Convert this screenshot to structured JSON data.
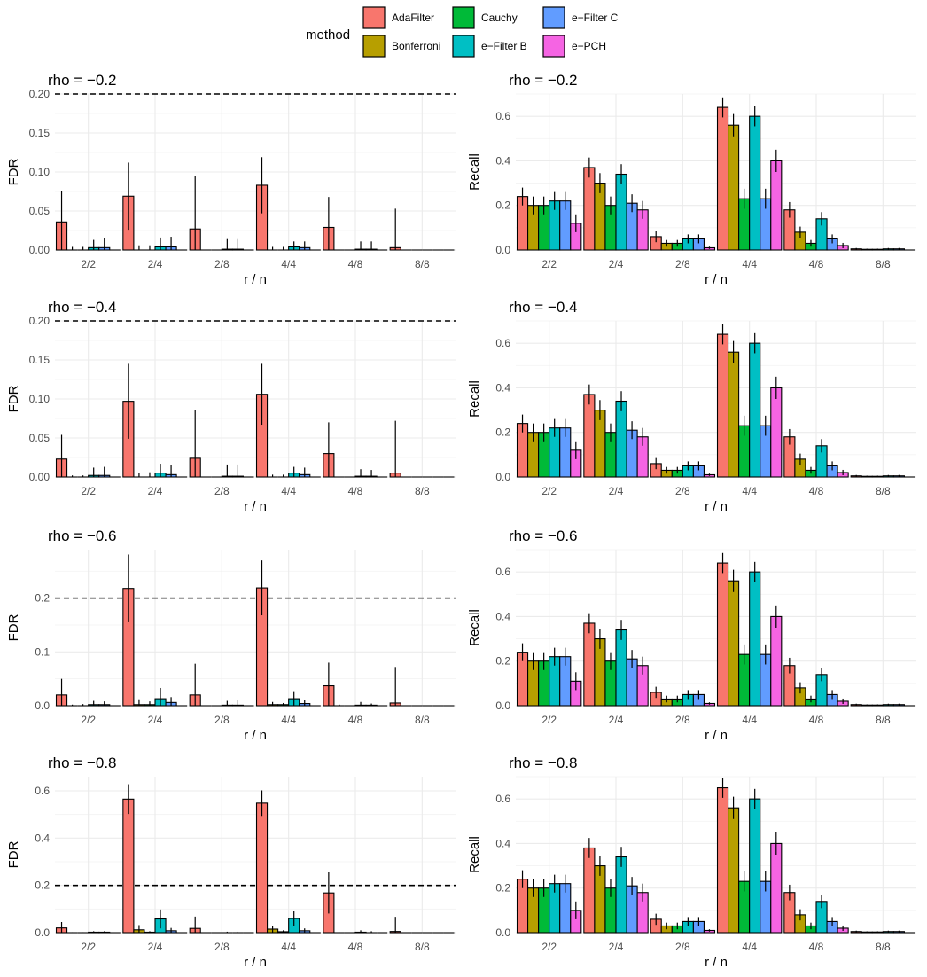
{
  "legend": {
    "title": "method",
    "items": [
      {
        "name": "AdaFilter",
        "color": "#F8766D"
      },
      {
        "name": "Bonferroni",
        "color": "#B79F00"
      },
      {
        "name": "Cauchy",
        "color": "#00BA38"
      },
      {
        "name": "e−Filter B",
        "color": "#00BFC4"
      },
      {
        "name": "e−Filter C",
        "color": "#619CFF"
      },
      {
        "name": "e−PCH",
        "color": "#F564E3"
      }
    ]
  },
  "chart_data": [
    {
      "type": "bar",
      "title": "rho = −0.2",
      "xlabel": "r / n",
      "ylabel": "FDR",
      "categories": [
        "2/2",
        "2/4",
        "2/8",
        "4/4",
        "4/8",
        "8/8"
      ],
      "ylim": [
        0,
        0.2
      ],
      "yticks": [
        "0.00",
        "0.05",
        "0.10",
        "0.15",
        "0.20"
      ],
      "reference_line": 0.2,
      "series": [
        {
          "name": "AdaFilter",
          "values": [
            0.036,
            0.069,
            0.027,
            0.083,
            0.029,
            0.003
          ],
          "err": [
            0.04,
            0.043,
            0.068,
            0.036,
            0.039,
            0.05
          ]
        },
        {
          "name": "Bonferroni",
          "values": [
            0,
            0,
            0,
            0,
            0,
            0
          ],
          "err": [
            0.004,
            0.006,
            0,
            0.004,
            0,
            0
          ]
        },
        {
          "name": "Cauchy",
          "values": [
            0,
            0,
            0,
            0,
            0,
            0
          ],
          "err": [
            0.004,
            0.006,
            0,
            0.004,
            0,
            0
          ]
        },
        {
          "name": "e−Filter B",
          "values": [
            0.003,
            0.004,
            0.001,
            0.004,
            0.001,
            0
          ],
          "err": [
            0.01,
            0.012,
            0.013,
            0.007,
            0.01,
            0
          ]
        },
        {
          "name": "e−Filter C",
          "values": [
            0.003,
            0.004,
            0.001,
            0.003,
            0.001,
            0
          ],
          "err": [
            0.012,
            0.013,
            0.013,
            0.008,
            0.01,
            0
          ]
        },
        {
          "name": "e−PCH",
          "values": [
            0,
            0,
            0,
            0,
            0,
            0
          ],
          "err": [
            0,
            0,
            0,
            0,
            0,
            0
          ]
        }
      ]
    },
    {
      "type": "bar",
      "title": "rho = −0.2",
      "xlabel": "r / n",
      "ylabel": "Recall",
      "categories": [
        "2/2",
        "2/4",
        "2/8",
        "4/4",
        "4/8",
        "8/8"
      ],
      "ylim": [
        0,
        0.7
      ],
      "yticks": [
        "0.0",
        "0.2",
        "0.4",
        "0.6"
      ],
      "series": [
        {
          "name": "AdaFilter",
          "values": [
            0.24,
            0.37,
            0.06,
            0.64,
            0.18,
            0.005
          ],
          "err": [
            0.04,
            0.045,
            0.025,
            0.045,
            0.035,
            0.004
          ]
        },
        {
          "name": "Bonferroni",
          "values": [
            0.2,
            0.3,
            0.03,
            0.56,
            0.08,
            0.003
          ],
          "err": [
            0.04,
            0.045,
            0.015,
            0.05,
            0.025,
            0.003
          ]
        },
        {
          "name": "Cauchy",
          "values": [
            0.2,
            0.2,
            0.03,
            0.23,
            0.03,
            0.003
          ],
          "err": [
            0.04,
            0.04,
            0.015,
            0.045,
            0.015,
            0.003
          ]
        },
        {
          "name": "e−Filter B",
          "values": [
            0.22,
            0.34,
            0.05,
            0.6,
            0.14,
            0.005
          ],
          "err": [
            0.04,
            0.045,
            0.02,
            0.045,
            0.03,
            0.004
          ]
        },
        {
          "name": "e−Filter C",
          "values": [
            0.22,
            0.21,
            0.05,
            0.23,
            0.05,
            0.005
          ],
          "err": [
            0.04,
            0.04,
            0.02,
            0.045,
            0.02,
            0.004
          ]
        },
        {
          "name": "e−PCH",
          "values": [
            0.12,
            0.18,
            0.01,
            0.4,
            0.02,
            0.001
          ],
          "err": [
            0.04,
            0.04,
            0.005,
            0.05,
            0.012,
            0.001
          ]
        }
      ]
    },
    {
      "type": "bar",
      "title": "rho = −0.4",
      "xlabel": "r / n",
      "ylabel": "FDR",
      "categories": [
        "2/2",
        "2/4",
        "2/8",
        "4/4",
        "4/8",
        "8/8"
      ],
      "ylim": [
        0,
        0.2
      ],
      "yticks": [
        "0.00",
        "0.05",
        "0.10",
        "0.15",
        "0.20"
      ],
      "reference_line": 0.2,
      "series": [
        {
          "name": "AdaFilter",
          "values": [
            0.023,
            0.097,
            0.024,
            0.106,
            0.03,
            0.005
          ],
          "err": [
            0.031,
            0.048,
            0.062,
            0.039,
            0.04,
            0.067
          ]
        },
        {
          "name": "Bonferroni",
          "values": [
            0,
            0,
            0,
            0,
            0,
            0
          ],
          "err": [
            0.002,
            0.005,
            0,
            0.003,
            0,
            0
          ]
        },
        {
          "name": "Cauchy",
          "values": [
            0,
            0,
            0,
            0,
            0,
            0
          ],
          "err": [
            0.002,
            0.006,
            0,
            0.003,
            0,
            0
          ]
        },
        {
          "name": "e−Filter B",
          "values": [
            0.002,
            0.005,
            0.001,
            0.005,
            0.001,
            0
          ],
          "err": [
            0.01,
            0.012,
            0.015,
            0.008,
            0.009,
            0
          ]
        },
        {
          "name": "e−Filter C",
          "values": [
            0.002,
            0.003,
            0.001,
            0.003,
            0.001,
            0
          ],
          "err": [
            0.011,
            0.012,
            0.015,
            0.009,
            0.008,
            0
          ]
        },
        {
          "name": "e−PCH",
          "values": [
            0,
            0,
            0,
            0,
            0,
            0
          ],
          "err": [
            0,
            0,
            0,
            0,
            0,
            0
          ]
        }
      ]
    },
    {
      "type": "bar",
      "title": "rho = −0.4",
      "xlabel": "r / n",
      "ylabel": "Recall",
      "categories": [
        "2/2",
        "2/4",
        "2/8",
        "4/4",
        "4/8",
        "8/8"
      ],
      "ylim": [
        0,
        0.7
      ],
      "yticks": [
        "0.0",
        "0.2",
        "0.4",
        "0.6"
      ],
      "series": [
        {
          "name": "AdaFilter",
          "values": [
            0.24,
            0.37,
            0.06,
            0.64,
            0.18,
            0.005
          ],
          "err": [
            0.04,
            0.045,
            0.025,
            0.045,
            0.035,
            0.004
          ]
        },
        {
          "name": "Bonferroni",
          "values": [
            0.2,
            0.3,
            0.03,
            0.56,
            0.08,
            0.003
          ],
          "err": [
            0.04,
            0.045,
            0.015,
            0.05,
            0.025,
            0.003
          ]
        },
        {
          "name": "Cauchy",
          "values": [
            0.2,
            0.2,
            0.03,
            0.23,
            0.03,
            0.003
          ],
          "err": [
            0.04,
            0.04,
            0.015,
            0.045,
            0.015,
            0.003
          ]
        },
        {
          "name": "e−Filter B",
          "values": [
            0.22,
            0.34,
            0.05,
            0.6,
            0.14,
            0.005
          ],
          "err": [
            0.04,
            0.045,
            0.02,
            0.045,
            0.03,
            0.004
          ]
        },
        {
          "name": "e−Filter C",
          "values": [
            0.22,
            0.21,
            0.05,
            0.23,
            0.05,
            0.005
          ],
          "err": [
            0.04,
            0.04,
            0.02,
            0.045,
            0.02,
            0.004
          ]
        },
        {
          "name": "e−PCH",
          "values": [
            0.12,
            0.18,
            0.01,
            0.4,
            0.02,
            0.001
          ],
          "err": [
            0.04,
            0.04,
            0.005,
            0.05,
            0.012,
            0.001
          ]
        }
      ]
    },
    {
      "type": "bar",
      "title": "rho = −0.6",
      "xlabel": "r / n",
      "ylabel": "FDR",
      "categories": [
        "2/2",
        "2/4",
        "2/8",
        "4/4",
        "4/8",
        "8/8"
      ],
      "ylim": [
        0,
        0.29
      ],
      "yticks": [
        "0.0",
        "0.1",
        "0.2"
      ],
      "reference_line": 0.2,
      "series": [
        {
          "name": "AdaFilter",
          "values": [
            0.02,
            0.218,
            0.02,
            0.219,
            0.037,
            0.005
          ],
          "err": [
            0.03,
            0.063,
            0.058,
            0.051,
            0.043,
            0.067
          ]
        },
        {
          "name": "Bonferroni",
          "values": [
            0,
            0.002,
            0,
            0.002,
            0,
            0
          ],
          "err": [
            0.002,
            0.01,
            0,
            0.005,
            0.002,
            0
          ]
        },
        {
          "name": "Cauchy",
          "values": [
            0,
            0.002,
            0,
            0.002,
            0,
            0
          ],
          "err": [
            0.003,
            0.006,
            0,
            0.003,
            0,
            0
          ]
        },
        {
          "name": "e−Filter B",
          "values": [
            0.002,
            0.013,
            0.001,
            0.013,
            0.001,
            0
          ],
          "err": [
            0.007,
            0.02,
            0.008,
            0.014,
            0.006,
            0
          ]
        },
        {
          "name": "e−Filter C",
          "values": [
            0.002,
            0.006,
            0.001,
            0.004,
            0.001,
            0
          ],
          "err": [
            0.006,
            0.01,
            0.01,
            0.006,
            0.003,
            0
          ]
        },
        {
          "name": "e−PCH",
          "values": [
            0,
            0,
            0,
            0,
            0,
            0
          ],
          "err": [
            0,
            0,
            0,
            0,
            0,
            0
          ]
        }
      ]
    },
    {
      "type": "bar",
      "title": "rho = −0.6",
      "xlabel": "r / n",
      "ylabel": "Recall",
      "categories": [
        "2/2",
        "2/4",
        "2/8",
        "4/4",
        "4/8",
        "8/8"
      ],
      "ylim": [
        0,
        0.7
      ],
      "yticks": [
        "0.0",
        "0.2",
        "0.4",
        "0.6"
      ],
      "series": [
        {
          "name": "AdaFilter",
          "values": [
            0.24,
            0.37,
            0.06,
            0.64,
            0.18,
            0.005
          ],
          "err": [
            0.04,
            0.045,
            0.025,
            0.045,
            0.035,
            0.004
          ]
        },
        {
          "name": "Bonferroni",
          "values": [
            0.2,
            0.3,
            0.03,
            0.56,
            0.08,
            0.003
          ],
          "err": [
            0.04,
            0.045,
            0.015,
            0.05,
            0.025,
            0.003
          ]
        },
        {
          "name": "Cauchy",
          "values": [
            0.2,
            0.2,
            0.03,
            0.23,
            0.03,
            0.003
          ],
          "err": [
            0.04,
            0.04,
            0.015,
            0.045,
            0.015,
            0.003
          ]
        },
        {
          "name": "e−Filter B",
          "values": [
            0.22,
            0.34,
            0.05,
            0.6,
            0.14,
            0.005
          ],
          "err": [
            0.04,
            0.045,
            0.02,
            0.045,
            0.03,
            0.004
          ]
        },
        {
          "name": "e−Filter C",
          "values": [
            0.22,
            0.21,
            0.05,
            0.23,
            0.05,
            0.005
          ],
          "err": [
            0.04,
            0.04,
            0.02,
            0.045,
            0.02,
            0.004
          ]
        },
        {
          "name": "e−PCH",
          "values": [
            0.11,
            0.18,
            0.01,
            0.4,
            0.02,
            0.001
          ],
          "err": [
            0.04,
            0.04,
            0.005,
            0.05,
            0.012,
            0.001
          ]
        }
      ]
    },
    {
      "type": "bar",
      "title": "rho = −0.8",
      "xlabel": "r / n",
      "ylabel": "FDR",
      "categories": [
        "2/2",
        "2/4",
        "2/8",
        "4/4",
        "4/8",
        "8/8"
      ],
      "ylim": [
        0,
        0.66
      ],
      "yticks": [
        "0.0",
        "0.2",
        "0.4",
        "0.6"
      ],
      "reference_line": 0.2,
      "series": [
        {
          "name": "AdaFilter",
          "values": [
            0.02,
            0.565,
            0.018,
            0.548,
            0.168,
            0.005
          ],
          "err": [
            0.025,
            0.063,
            0.05,
            0.054,
            0.087,
            0.062
          ]
        },
        {
          "name": "Bonferroni",
          "values": [
            0,
            0.012,
            0,
            0.015,
            0,
            0
          ],
          "err": [
            0.002,
            0.02,
            0,
            0.015,
            0.002,
            0
          ]
        },
        {
          "name": "Cauchy",
          "values": [
            0,
            0.002,
            0,
            0.004,
            0,
            0
          ],
          "err": [
            0.002,
            0.004,
            0,
            0.006,
            0,
            0
          ]
        },
        {
          "name": "e−Filter B",
          "values": [
            0.002,
            0.058,
            0.001,
            0.06,
            0.002,
            0
          ],
          "err": [
            0.004,
            0.04,
            0.003,
            0.033,
            0.008,
            0
          ]
        },
        {
          "name": "e−Filter C",
          "values": [
            0.002,
            0.008,
            0.001,
            0.008,
            0.001,
            0
          ],
          "err": [
            0.004,
            0.012,
            0.003,
            0.01,
            0.005,
            0
          ]
        },
        {
          "name": "e−PCH",
          "values": [
            0,
            0,
            0,
            0,
            0,
            0
          ],
          "err": [
            0,
            0,
            0,
            0,
            0,
            0
          ]
        }
      ]
    },
    {
      "type": "bar",
      "title": "rho = −0.8",
      "xlabel": "r / n",
      "ylabel": "Recall",
      "categories": [
        "2/2",
        "2/4",
        "2/8",
        "4/4",
        "4/8",
        "8/8"
      ],
      "ylim": [
        0,
        0.7
      ],
      "yticks": [
        "0.0",
        "0.2",
        "0.4",
        "0.6"
      ],
      "series": [
        {
          "name": "AdaFilter",
          "values": [
            0.24,
            0.38,
            0.06,
            0.65,
            0.18,
            0.005
          ],
          "err": [
            0.04,
            0.045,
            0.025,
            0.045,
            0.035,
            0.004
          ]
        },
        {
          "name": "Bonferroni",
          "values": [
            0.2,
            0.3,
            0.03,
            0.56,
            0.08,
            0.003
          ],
          "err": [
            0.04,
            0.045,
            0.015,
            0.05,
            0.025,
            0.003
          ]
        },
        {
          "name": "Cauchy",
          "values": [
            0.2,
            0.2,
            0.03,
            0.23,
            0.03,
            0.003
          ],
          "err": [
            0.04,
            0.04,
            0.015,
            0.045,
            0.015,
            0.003
          ]
        },
        {
          "name": "e−Filter B",
          "values": [
            0.22,
            0.34,
            0.05,
            0.6,
            0.14,
            0.005
          ],
          "err": [
            0.04,
            0.045,
            0.02,
            0.045,
            0.03,
            0.004
          ]
        },
        {
          "name": "e−Filter C",
          "values": [
            0.22,
            0.21,
            0.05,
            0.23,
            0.05,
            0.005
          ],
          "err": [
            0.04,
            0.04,
            0.02,
            0.045,
            0.02,
            0.004
          ]
        },
        {
          "name": "e−PCH",
          "values": [
            0.1,
            0.18,
            0.01,
            0.4,
            0.02,
            0.001
          ],
          "err": [
            0.04,
            0.04,
            0.005,
            0.05,
            0.012,
            0.001
          ]
        }
      ]
    }
  ]
}
